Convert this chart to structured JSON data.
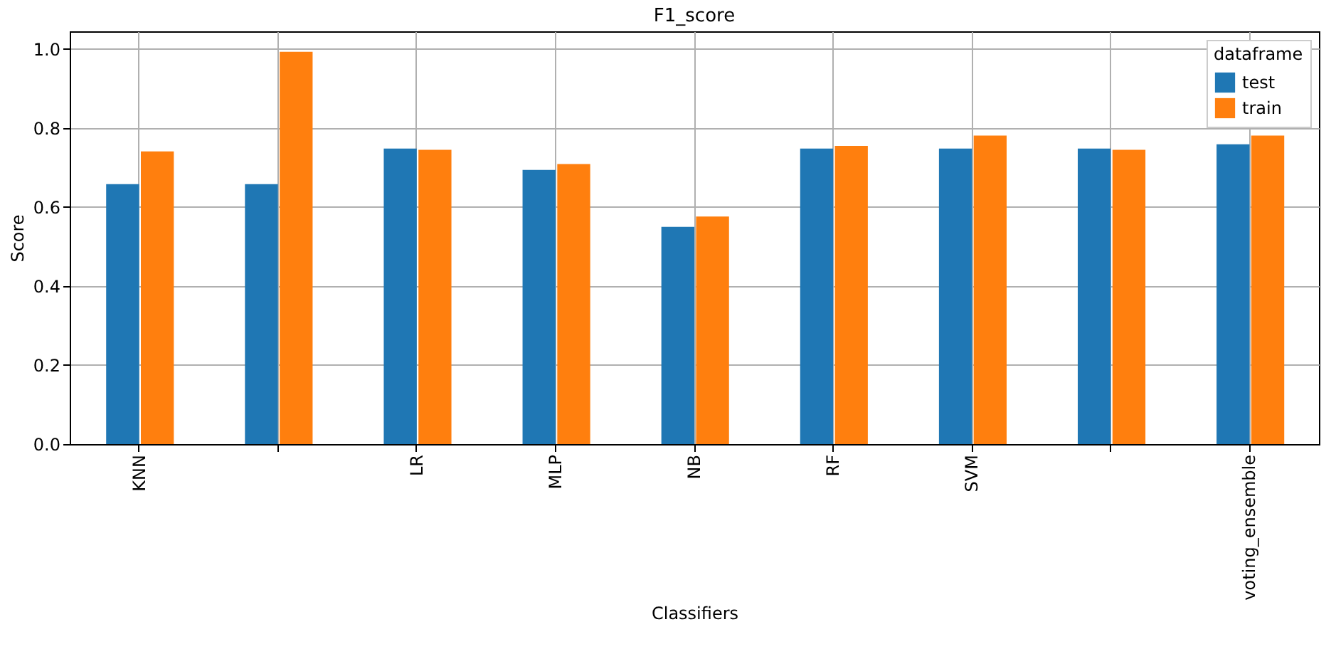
{
  "chart_data": {
    "type": "bar",
    "title": "F1_score",
    "xlabel": "Classifiers",
    "ylabel": "Score",
    "legend_title": "dataframe",
    "categories": [
      "KNN",
      null,
      "LR",
      "MLP",
      "NB",
      "RF",
      "SVM",
      null,
      "voting_ensemble"
    ],
    "series": [
      {
        "name": "test",
        "color": "#1f77b4",
        "values": [
          0.658,
          0.658,
          0.748,
          0.694,
          0.55,
          0.748,
          0.748,
          0.748,
          0.759
        ]
      },
      {
        "name": "train",
        "color": "#ff7f0e",
        "values": [
          0.741,
          0.993,
          0.745,
          0.709,
          0.576,
          0.755,
          0.781,
          0.745,
          0.781
        ]
      }
    ],
    "ylim": [
      0,
      1.045
    ],
    "yticks": [
      {
        "value": 0,
        "label": "0.0"
      },
      0.2,
      0.4,
      0.6,
      0.8,
      {
        "value": 1,
        "label": "1.0"
      }
    ],
    "grid": true,
    "legend": "top right"
  }
}
